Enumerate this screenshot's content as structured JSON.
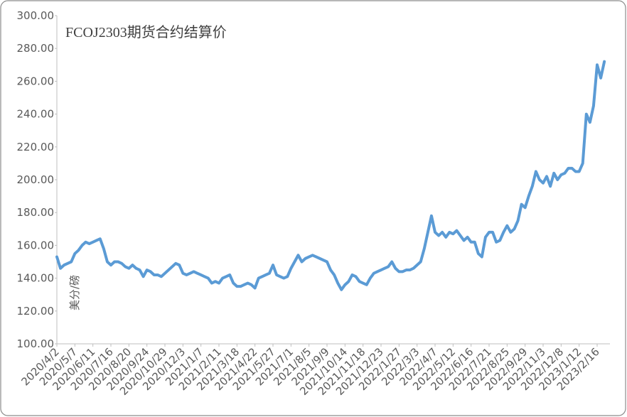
{
  "chart_data": {
    "type": "line",
    "title": "FCOJ2303期货合约结算价",
    "ylabel": "美分/磅",
    "color": "#5b9bd5",
    "ylim": [
      100,
      300
    ],
    "yticks": [
      {
        "value": 100,
        "label": "100.00"
      },
      {
        "value": 120,
        "label": "120.00"
      },
      {
        "value": 140,
        "label": "140.00"
      },
      {
        "value": 160,
        "label": "160.00"
      },
      {
        "value": 180,
        "label": "180.00"
      },
      {
        "value": 200,
        "label": "200.00"
      },
      {
        "value": 220,
        "label": "220.00"
      },
      {
        "value": 240,
        "label": "240.00"
      },
      {
        "value": 260,
        "label": "260.00"
      },
      {
        "value": 280,
        "label": "280.00"
      },
      {
        "value": 300,
        "label": "300.00"
      }
    ],
    "categories": [
      "2020/4/2",
      null,
      null,
      null,
      null,
      "2020/5/7",
      null,
      null,
      null,
      null,
      "2020/6/11",
      null,
      null,
      null,
      null,
      "2020/7/16",
      null,
      null,
      null,
      null,
      "2020/8/20",
      null,
      null,
      null,
      null,
      "2020/9/24",
      null,
      null,
      null,
      null,
      "2020/10/29",
      null,
      null,
      null,
      null,
      "2020/12/3",
      null,
      null,
      null,
      null,
      "2021/1/7",
      null,
      null,
      null,
      null,
      "2021/2/11",
      null,
      null,
      null,
      null,
      "2021/3/18",
      null,
      null,
      null,
      null,
      "2021/4/22",
      null,
      null,
      null,
      null,
      "2021/5/27",
      null,
      null,
      null,
      null,
      "2021/7/1",
      null,
      null,
      null,
      null,
      "2021/8/5",
      null,
      null,
      null,
      null,
      "2021/9/9",
      null,
      null,
      null,
      null,
      "2021/10/14",
      null,
      null,
      null,
      null,
      "2021/11/18",
      null,
      null,
      null,
      null,
      "2021/12/23",
      null,
      null,
      null,
      null,
      "2022/1/27",
      null,
      null,
      null,
      null,
      "2022/3/3",
      null,
      null,
      null,
      null,
      "2022/4/7",
      null,
      null,
      null,
      null,
      "2022/5/12",
      null,
      null,
      null,
      null,
      "2022/6/16",
      null,
      null,
      null,
      null,
      "2022/7/21",
      null,
      null,
      null,
      null,
      "2022/8/25",
      null,
      null,
      null,
      null,
      "2022/9/29",
      null,
      null,
      null,
      null,
      "2022/11/3",
      null,
      null,
      null,
      null,
      "2022/12/8",
      null,
      null,
      null,
      null,
      "2023/1/12",
      null,
      null,
      null,
      null,
      "2023/2/16",
      null,
      null
    ],
    "values": [
      153,
      146,
      148,
      149,
      150,
      155,
      157,
      160,
      162,
      161,
      162,
      163,
      164,
      158,
      150,
      148,
      150,
      150,
      149,
      147,
      146,
      148,
      146,
      145,
      141,
      145,
      144,
      142,
      142,
      141,
      143,
      145,
      147,
      149,
      148,
      143,
      142,
      143,
      144,
      143,
      142,
      141,
      140,
      137,
      138,
      137,
      140,
      141,
      142,
      137,
      135,
      135,
      136,
      137,
      136,
      134,
      140,
      141,
      142,
      143,
      148,
      142,
      141,
      140,
      141,
      146,
      150,
      154,
      150,
      152,
      153,
      154,
      153,
      152,
      151,
      150,
      145,
      142,
      137,
      133,
      136,
      138,
      142,
      141,
      138,
      137,
      136,
      140,
      143,
      144,
      145,
      146,
      147,
      150,
      146,
      144,
      144,
      145,
      145,
      146,
      148,
      150,
      158,
      168,
      178,
      168,
      166,
      168,
      165,
      168,
      167,
      169,
      166,
      163,
      165,
      162,
      162,
      155,
      153,
      165,
      168,
      168,
      162,
      163,
      168,
      172,
      168,
      170,
      175,
      185,
      183,
      190,
      196,
      205,
      200,
      198,
      202,
      196,
      204,
      200,
      203,
      204,
      207,
      207,
      205,
      205,
      210,
      240,
      235,
      245,
      270,
      262,
      272
    ]
  }
}
